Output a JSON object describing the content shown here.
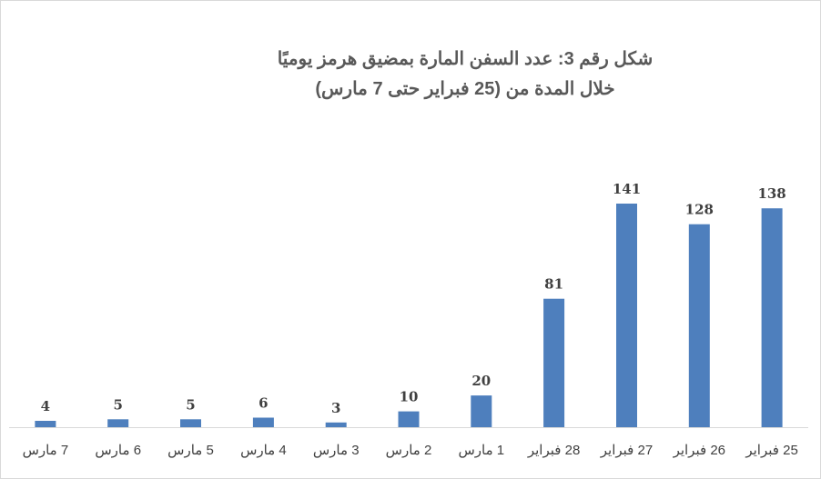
{
  "chart_data": {
    "type": "bar",
    "title": "شكل رقم 3: عدد السفن المارة بمضيق هرمز يوميًا",
    "subtitle": "خلال المدة من (25 فبراير حتى 7 مارس)",
    "categories": [
      "25 فبراير",
      "26 فبراير",
      "27 فبراير",
      "28 فبراير",
      "1 مارس",
      "2 مارس",
      "3 مارس",
      "4 مارس",
      "5 مارس",
      "6 مارس",
      "7 مارس"
    ],
    "values": [
      138,
      128,
      141,
      81,
      20,
      10,
      3,
      6,
      5,
      5,
      4
    ],
    "category_order": "right-to-left",
    "ylim": [
      0,
      141
    ],
    "grid": false,
    "legend": "none",
    "data_labels": true,
    "bar_color": "#4e7fbd"
  }
}
